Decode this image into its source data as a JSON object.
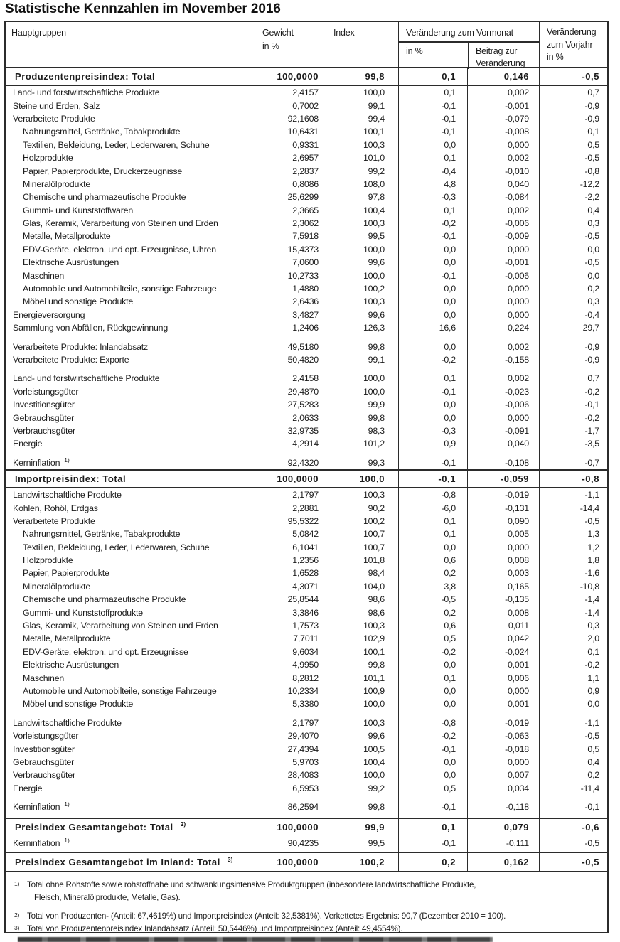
{
  "title": "Statistische Kennzahlen im November 2016",
  "colors": {
    "ink": "#1b1b1b",
    "line": "#2b2b2b",
    "cutoff_bar": "#4a4a4a"
  },
  "table": {
    "header": {
      "hauptgruppen": "Hauptgruppen",
      "gewicht_line1": "Gewicht",
      "gewicht_line2": "in %",
      "index": "Index",
      "vormonat_group": "Veränderung zum Vormonat",
      "vormonat_pct": "in %",
      "beitrag_line1": "Beitrag zur",
      "beitrag_line2": "Veränderung",
      "vorjahr_line1": "Veränderung",
      "vorjahr_line2": "zum Vorjahr",
      "vorjahr_line3": "in %"
    },
    "rows": [
      {
        "kind": "total",
        "rules": "b",
        "label": "Produzentenpreisindex: Total",
        "sup": "",
        "values": [
          "100,0000",
          "99,8",
          "0,1",
          "0,146",
          "-0,5"
        ]
      },
      {
        "kind": "item",
        "indent": 0,
        "label": "Land- und forstwirtschaftliche Produkte",
        "sup": "",
        "values": [
          "2,4157",
          "100,0",
          "0,1",
          "0,002",
          "0,7"
        ]
      },
      {
        "kind": "item",
        "indent": 0,
        "label": "Steine und Erden, Salz",
        "sup": "",
        "values": [
          "0,7002",
          "99,1",
          "-0,1",
          "-0,001",
          "-0,9"
        ]
      },
      {
        "kind": "item",
        "indent": 0,
        "label": "Verarbeitete Produkte",
        "sup": "",
        "values": [
          "92,1608",
          "99,4",
          "-0,1",
          "-0,079",
          "-0,9"
        ]
      },
      {
        "kind": "item",
        "indent": 1,
        "label": "Nahrungsmittel, Getränke, Tabakprodukte",
        "sup": "",
        "values": [
          "10,6431",
          "100,1",
          "-0,1",
          "-0,008",
          "0,1"
        ]
      },
      {
        "kind": "item",
        "indent": 1,
        "label": "Textilien, Bekleidung, Leder, Lederwaren, Schuhe",
        "sup": "",
        "values": [
          "0,9331",
          "100,3",
          "0,0",
          "0,000",
          "0,5"
        ]
      },
      {
        "kind": "item",
        "indent": 1,
        "label": "Holzprodukte",
        "sup": "",
        "values": [
          "2,6957",
          "101,0",
          "0,1",
          "0,002",
          "-0,5"
        ]
      },
      {
        "kind": "item",
        "indent": 1,
        "label": "Papier, Papierprodukte, Druckerzeugnisse",
        "sup": "",
        "values": [
          "2,2837",
          "99,2",
          "-0,4",
          "-0,010",
          "-0,8"
        ]
      },
      {
        "kind": "item",
        "indent": 1,
        "label": "Mineralölprodukte",
        "sup": "",
        "values": [
          "0,8086",
          "108,0",
          "4,8",
          "0,040",
          "-12,2"
        ]
      },
      {
        "kind": "item",
        "indent": 1,
        "label": "Chemische und pharmazeutische Produkte",
        "sup": "",
        "values": [
          "25,6299",
          "97,8",
          "-0,3",
          "-0,084",
          "-2,2"
        ]
      },
      {
        "kind": "item",
        "indent": 1,
        "label": "Gummi- und Kunststoffwaren",
        "sup": "",
        "values": [
          "2,3665",
          "100,4",
          "0,1",
          "0,002",
          "0,4"
        ]
      },
      {
        "kind": "item",
        "indent": 1,
        "label": "Glas, Keramik, Verarbeitung von Steinen und Erden",
        "sup": "",
        "values": [
          "2,3062",
          "100,3",
          "-0,2",
          "-0,006",
          "0,3"
        ]
      },
      {
        "kind": "item",
        "indent": 1,
        "label": "Metalle, Metallprodukte",
        "sup": "",
        "values": [
          "7,5918",
          "99,5",
          "-0,1",
          "-0,009",
          "-0,5"
        ]
      },
      {
        "kind": "item",
        "indent": 1,
        "label": "EDV-Geräte, elektron. und opt. Erzeugnisse, Uhren",
        "sup": "",
        "values": [
          "15,4373",
          "100,0",
          "0,0",
          "0,000",
          "0,0"
        ]
      },
      {
        "kind": "item",
        "indent": 1,
        "label": "Elektrische Ausrüstungen",
        "sup": "",
        "values": [
          "7,0600",
          "99,6",
          "0,0",
          "-0,001",
          "-0,5"
        ]
      },
      {
        "kind": "item",
        "indent": 1,
        "label": "Maschinen",
        "sup": "",
        "values": [
          "10,2733",
          "100,0",
          "-0,1",
          "-0,006",
          "0,0"
        ]
      },
      {
        "kind": "item",
        "indent": 1,
        "label": "Automobile und Automobilteile, sonstige Fahrzeuge",
        "sup": "",
        "values": [
          "1,4880",
          "100,2",
          "0,0",
          "0,000",
          "0,2"
        ]
      },
      {
        "kind": "item",
        "indent": 1,
        "label": "Möbel und sonstige Produkte",
        "sup": "",
        "values": [
          "2,6436",
          "100,3",
          "0,0",
          "0,000",
          "0,3"
        ]
      },
      {
        "kind": "item",
        "indent": 0,
        "label": "Energieversorgung",
        "sup": "",
        "values": [
          "3,4827",
          "99,6",
          "0,0",
          "0,000",
          "-0,4"
        ]
      },
      {
        "kind": "item",
        "indent": 0,
        "label": "Sammlung von Abfällen, Rückgewinnung",
        "sup": "",
        "values": [
          "1,2406",
          "126,3",
          "16,6",
          "0,224",
          "29,7"
        ]
      },
      {
        "kind": "spacer"
      },
      {
        "kind": "item",
        "indent": 0,
        "label": "Verarbeitete Produkte: Inlandabsatz",
        "sup": "",
        "values": [
          "49,5180",
          "99,8",
          "0,0",
          "0,002",
          "-0,9"
        ]
      },
      {
        "kind": "item",
        "indent": 0,
        "label": "Verarbeitete Produkte: Exporte",
        "sup": "",
        "values": [
          "50,4820",
          "99,1",
          "-0,2",
          "-0,158",
          "-0,9"
        ]
      },
      {
        "kind": "spacer"
      },
      {
        "kind": "item",
        "indent": 0,
        "label": "Land- und forstwirtschaftliche Produkte",
        "sup": "",
        "values": [
          "2,4158",
          "100,0",
          "0,1",
          "0,002",
          "0,7"
        ]
      },
      {
        "kind": "item",
        "indent": 0,
        "label": "Vorleistungsgüter",
        "sup": "",
        "values": [
          "29,4870",
          "100,0",
          "-0,1",
          "-0,023",
          "-0,2"
        ]
      },
      {
        "kind": "item",
        "indent": 0,
        "label": "Investitionsgüter",
        "sup": "",
        "values": [
          "27,5283",
          "99,9",
          "0,0",
          "-0,006",
          "-0,1"
        ]
      },
      {
        "kind": "item",
        "indent": 0,
        "label": "Gebrauchsgüter",
        "sup": "",
        "values": [
          "2,0633",
          "99,8",
          "0,0",
          "0,000",
          "-0,2"
        ]
      },
      {
        "kind": "item",
        "indent": 0,
        "label": "Verbrauchsgüter",
        "sup": "",
        "values": [
          "32,9735",
          "98,3",
          "-0,3",
          "-0,091",
          "-1,7"
        ]
      },
      {
        "kind": "item",
        "indent": 0,
        "label": "Energie",
        "sup": "",
        "values": [
          "4,2914",
          "101,2",
          "0,9",
          "0,040",
          "-3,5"
        ]
      },
      {
        "kind": "spacer"
      },
      {
        "kind": "item",
        "indent": 0,
        "label": "Kerninflation",
        "sup": "1)",
        "values": [
          "92,4320",
          "99,3",
          "-0,1",
          "-0,108",
          "-0,7"
        ]
      },
      {
        "kind": "total",
        "rules": "tb",
        "label": "Importpreisindex: Total",
        "sup": "",
        "values": [
          "100,0000",
          "100,0",
          "-0,1",
          "-0,059",
          "-0,8"
        ]
      },
      {
        "kind": "item",
        "indent": 0,
        "label": "Landwirtschaftliche Produkte",
        "sup": "",
        "values": [
          "2,1797",
          "100,3",
          "-0,8",
          "-0,019",
          "-1,1"
        ]
      },
      {
        "kind": "item",
        "indent": 0,
        "label": "Kohlen, Rohöl, Erdgas",
        "sup": "",
        "values": [
          "2,2881",
          "90,2",
          "-6,0",
          "-0,131",
          "-14,4"
        ]
      },
      {
        "kind": "item",
        "indent": 0,
        "label": "Verarbeitete Produkte",
        "sup": "",
        "values": [
          "95,5322",
          "100,2",
          "0,1",
          "0,090",
          "-0,5"
        ]
      },
      {
        "kind": "item",
        "indent": 1,
        "label": "Nahrungsmittel, Getränke, Tabakprodukte",
        "sup": "",
        "values": [
          "5,0842",
          "100,7",
          "0,1",
          "0,005",
          "1,3"
        ]
      },
      {
        "kind": "item",
        "indent": 1,
        "label": "Textilien, Bekleidung, Leder, Lederwaren, Schuhe",
        "sup": "",
        "values": [
          "6,1041",
          "100,7",
          "0,0",
          "0,000",
          "1,2"
        ]
      },
      {
        "kind": "item",
        "indent": 1,
        "label": "Holzprodukte",
        "sup": "",
        "values": [
          "1,2356",
          "101,8",
          "0,6",
          "0,008",
          "1,8"
        ]
      },
      {
        "kind": "item",
        "indent": 1,
        "label": "Papier, Papierprodukte",
        "sup": "",
        "values": [
          "1,6528",
          "98,4",
          "0,2",
          "0,003",
          "-1,6"
        ]
      },
      {
        "kind": "item",
        "indent": 1,
        "label": "Mineralölprodukte",
        "sup": "",
        "values": [
          "4,3071",
          "104,0",
          "3,8",
          "0,165",
          "-10,8"
        ]
      },
      {
        "kind": "item",
        "indent": 1,
        "label": "Chemische und pharmazeutische Produkte",
        "sup": "",
        "values": [
          "25,8544",
          "98,6",
          "-0,5",
          "-0,135",
          "-1,4"
        ]
      },
      {
        "kind": "item",
        "indent": 1,
        "label": "Gummi- und Kunststoffprodukte",
        "sup": "",
        "values": [
          "3,3846",
          "98,6",
          "0,2",
          "0,008",
          "-1,4"
        ]
      },
      {
        "kind": "item",
        "indent": 1,
        "label": "Glas, Keramik, Verarbeitung von Steinen und Erden",
        "sup": "",
        "values": [
          "1,7573",
          "100,3",
          "0,6",
          "0,011",
          "0,3"
        ]
      },
      {
        "kind": "item",
        "indent": 1,
        "label": "Metalle, Metallprodukte",
        "sup": "",
        "values": [
          "7,7011",
          "102,9",
          "0,5",
          "0,042",
          "2,0"
        ]
      },
      {
        "kind": "item",
        "indent": 1,
        "label": "EDV-Geräte, elektron. und opt. Erzeugnisse",
        "sup": "",
        "values": [
          "9,6034",
          "100,1",
          "-0,2",
          "-0,024",
          "0,1"
        ]
      },
      {
        "kind": "item",
        "indent": 1,
        "label": "Elektrische Ausrüstungen",
        "sup": "",
        "values": [
          "4,9950",
          "99,8",
          "0,0",
          "0,001",
          "-0,2"
        ]
      },
      {
        "kind": "item",
        "indent": 1,
        "label": "Maschinen",
        "sup": "",
        "values": [
          "8,2812",
          "101,1",
          "0,1",
          "0,006",
          "1,1"
        ]
      },
      {
        "kind": "item",
        "indent": 1,
        "label": "Automobile und Automobilteile, sonstige Fahrzeuge",
        "sup": "",
        "values": [
          "10,2334",
          "100,9",
          "0,0",
          "0,000",
          "0,9"
        ]
      },
      {
        "kind": "item",
        "indent": 1,
        "label": "Möbel und sonstige Produkte",
        "sup": "",
        "values": [
          "5,3380",
          "100,0",
          "0,0",
          "0,001",
          "0,0"
        ]
      },
      {
        "kind": "spacer"
      },
      {
        "kind": "item",
        "indent": 0,
        "label": "Landwirtschaftliche Produkte",
        "sup": "",
        "values": [
          "2,1797",
          "100,3",
          "-0,8",
          "-0,019",
          "-1,1"
        ]
      },
      {
        "kind": "item",
        "indent": 0,
        "label": "Vorleistungsgüter",
        "sup": "",
        "values": [
          "29,4070",
          "99,6",
          "-0,2",
          "-0,063",
          "-0,5"
        ]
      },
      {
        "kind": "item",
        "indent": 0,
        "label": "Investitionsgüter",
        "sup": "",
        "values": [
          "27,4394",
          "100,5",
          "-0,1",
          "-0,018",
          "0,5"
        ]
      },
      {
        "kind": "item",
        "indent": 0,
        "label": "Gebrauchsgüter",
        "sup": "",
        "values": [
          "5,9703",
          "100,4",
          "0,0",
          "0,000",
          "0,4"
        ]
      },
      {
        "kind": "item",
        "indent": 0,
        "label": "Verbrauchsgüter",
        "sup": "",
        "values": [
          "28,4083",
          "100,0",
          "0,0",
          "0,007",
          "0,2"
        ]
      },
      {
        "kind": "item",
        "indent": 0,
        "label": "Energie",
        "sup": "",
        "values": [
          "6,5953",
          "99,2",
          "0,5",
          "0,034",
          "-11,4"
        ]
      },
      {
        "kind": "spacer"
      },
      {
        "kind": "item",
        "indent": 0,
        "label": "Kerninflation",
        "sup": "1)",
        "values": [
          "86,2594",
          "99,8",
          "-0,1",
          "-0,118",
          "-0,1"
        ]
      },
      {
        "kind": "spacer2"
      },
      {
        "kind": "total",
        "rules": "t",
        "size": "h22",
        "label": "Preisindex Gesamtangebot: Total",
        "sup": "2)",
        "values": [
          "100,0000",
          "99,9",
          "0,1",
          "0,079",
          "-0,6"
        ]
      },
      {
        "kind": "item",
        "indent": 0,
        "size": "h24",
        "label": "Kerninflation",
        "sup": "1)",
        "values": [
          "90,4235",
          "99,5",
          "-0,1",
          "-0,111",
          "-0,5"
        ]
      },
      {
        "kind": "total",
        "rules": "tb",
        "size": "h25",
        "label": "Preisindex Gesamtangebot im Inland: Total",
        "sup": "3)",
        "values": [
          "100,0000",
          "100,2",
          "0,2",
          "0,162",
          "-0,5"
        ]
      }
    ]
  },
  "footnotes": [
    {
      "sup": "1)",
      "lines": [
        "Total ohne Rohstoffe sowie rohstoffnahe und schwankungsintensive Produktgruppen (inbesondere landwirtschaftliche Produkte,",
        "Fleisch, Mineralölprodukte, Metalle, Gas)."
      ]
    },
    {
      "sup": "2)",
      "lines": [
        "Total von Produzenten- (Anteil: 67,4619%) und Importpreisindex (Anteil: 32,5381%). Verkettetes Ergebnis: 90,7 (Dezember 2010 = 100)."
      ]
    },
    {
      "sup": "3)",
      "lines": [
        "Total von Produzentenpreisindex Inlandabsatz (Anteil: 50,5446%) und Importpreisindex (Anteil: 49,4554%)."
      ]
    }
  ]
}
